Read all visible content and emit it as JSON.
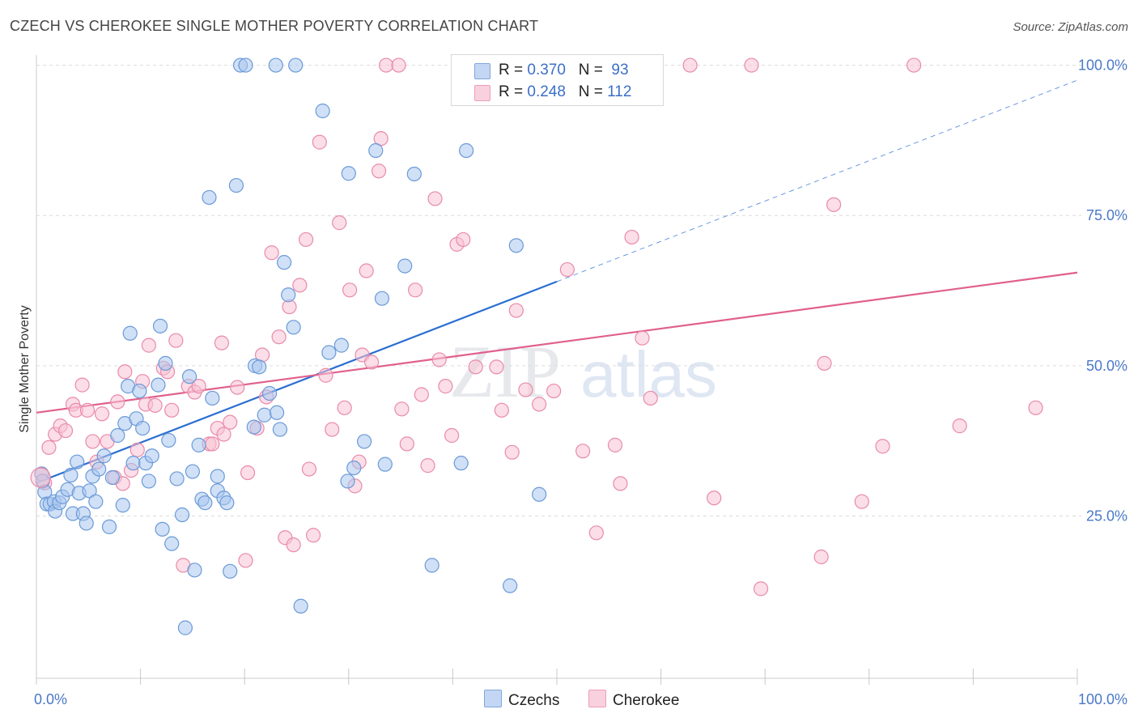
{
  "title": "CZECH VS CHEROKEE SINGLE MOTHER POVERTY CORRELATION CHART",
  "source": "Source: ZipAtlas.com",
  "watermark": {
    "zip": "ZIP",
    "atlas": "atlas"
  },
  "legend": {
    "rows": [
      {
        "r_label": "R = ",
        "r_value": "0.370",
        "n_label": "N = ",
        "n_value": "93"
      },
      {
        "r_label": "R = ",
        "r_value": "0.248",
        "n_label": "N = ",
        "n_value": "112"
      }
    ]
  },
  "colors": {
    "czech_fill": "#a9c7ef",
    "czech_stroke": "#6a9ad8",
    "czech_line": "#2b6fd1",
    "cherokee_fill": "#f7c3d3",
    "cherokee_stroke": "#e98aaa",
    "cherokee_line": "#e0608c",
    "tick_color": "#4a78c8"
  },
  "chart_data": {
    "type": "scatter",
    "title": "CZECH VS CHEROKEE SINGLE MOTHER POVERTY CORRELATION CHART",
    "xlabel": "",
    "ylabel": "Single Mother Poverty",
    "xlim": [
      0,
      100
    ],
    "ylim": [
      -2,
      102.5
    ],
    "x_tick_labels": [
      "0.0%",
      "100.0%"
    ],
    "y_ticks": [
      25,
      50,
      75,
      100
    ],
    "y_tick_labels": [
      "25.0%",
      "50.0%",
      "75.0%",
      "100.0%"
    ],
    "grid": true,
    "legend_position": "bottom-center",
    "series": [
      {
        "name": "Czechs",
        "r": 0.37,
        "n": 93,
        "trend": {
          "x": [
            0,
            50
          ],
          "y": [
            30.5,
            64.0
          ],
          "dashed_to": [
            100,
            97.5
          ]
        },
        "points": [
          [
            0.5,
            32
          ],
          [
            0.6,
            30.8
          ],
          [
            0.8,
            29
          ],
          [
            1,
            27
          ],
          [
            1.3,
            27
          ],
          [
            1.7,
            27.4
          ],
          [
            1.8,
            25.8
          ],
          [
            2.2,
            27.2
          ],
          [
            2.5,
            28.2
          ],
          [
            3,
            29.4
          ],
          [
            3.3,
            31.8
          ],
          [
            3.5,
            25.4
          ],
          [
            3.9,
            34
          ],
          [
            4.1,
            28.8
          ],
          [
            4.5,
            25.4
          ],
          [
            4.8,
            23.8
          ],
          [
            5.1,
            29.2
          ],
          [
            5.4,
            31.6
          ],
          [
            5.7,
            27.4
          ],
          [
            6,
            32.8
          ],
          [
            6.5,
            35
          ],
          [
            7,
            23.2
          ],
          [
            7.3,
            31.4
          ],
          [
            7.8,
            38.4
          ],
          [
            8.3,
            26.8
          ],
          [
            8.5,
            40.4
          ],
          [
            8.8,
            46.6
          ],
          [
            9,
            55.4
          ],
          [
            9.3,
            33.8
          ],
          [
            9.6,
            41.2
          ],
          [
            9.9,
            45.8
          ],
          [
            10.2,
            39.6
          ],
          [
            10.5,
            33.8
          ],
          [
            10.8,
            30.8
          ],
          [
            11.1,
            35
          ],
          [
            11.7,
            46.8
          ],
          [
            11.9,
            56.6
          ],
          [
            12.1,
            22.8
          ],
          [
            12.4,
            50.4
          ],
          [
            12.7,
            37.6
          ],
          [
            13,
            20.4
          ],
          [
            13.5,
            31.2
          ],
          [
            14,
            25.2
          ],
          [
            14.3,
            6.4
          ],
          [
            14.7,
            48.2
          ],
          [
            15,
            32.4
          ],
          [
            15.2,
            16
          ],
          [
            15.6,
            36.8
          ],
          [
            15.9,
            27.8
          ],
          [
            16.2,
            27.2
          ],
          [
            16.6,
            78
          ],
          [
            16.9,
            44.6
          ],
          [
            17.4,
            29.2
          ],
          [
            17.4,
            31.6
          ],
          [
            18,
            28
          ],
          [
            18.3,
            27.2
          ],
          [
            18.6,
            15.8
          ],
          [
            19.2,
            80
          ],
          [
            19.6,
            100
          ],
          [
            20.1,
            100
          ],
          [
            20.9,
            39.8
          ],
          [
            21,
            50
          ],
          [
            21.4,
            49.8
          ],
          [
            21.9,
            41.8
          ],
          [
            22.4,
            45.4
          ],
          [
            23.1,
            42.2
          ],
          [
            23.4,
            39.4
          ],
          [
            23.8,
            67.2
          ],
          [
            24.2,
            61.8
          ],
          [
            24.7,
            56.4
          ],
          [
            23,
            100
          ],
          [
            24.9,
            100
          ],
          [
            25.4,
            10
          ],
          [
            27.5,
            92.4
          ],
          [
            28.1,
            52.2
          ],
          [
            29.3,
            53.4
          ],
          [
            29.9,
            30.8
          ],
          [
            30.5,
            33
          ],
          [
            31.5,
            37.4
          ],
          [
            32.6,
            85.8
          ],
          [
            33.2,
            61.2
          ],
          [
            33.5,
            33.6
          ],
          [
            35.4,
            66.6
          ],
          [
            36.3,
            81.9
          ],
          [
            38,
            16.8
          ],
          [
            40.8,
            33.8
          ],
          [
            41.3,
            85.8
          ],
          [
            45.5,
            13.4
          ],
          [
            46.1,
            70
          ],
          [
            48.3,
            28.6
          ],
          [
            30,
            82
          ]
        ]
      },
      {
        "name": "Cherokee",
        "r": 0.248,
        "n": 112,
        "trend": {
          "x": [
            0,
            100
          ],
          "y": [
            42.2,
            65.5
          ]
        },
        "points": [
          [
            0.5,
            32
          ],
          [
            0.8,
            30.5
          ],
          [
            1.2,
            36.4
          ],
          [
            1.8,
            38.6
          ],
          [
            2.3,
            40
          ],
          [
            2.8,
            39.2
          ],
          [
            3.5,
            43.6
          ],
          [
            3.8,
            42.6
          ],
          [
            4.4,
            46.8
          ],
          [
            4.9,
            42.6
          ],
          [
            5.4,
            37.4
          ],
          [
            5.8,
            34
          ],
          [
            6.3,
            42
          ],
          [
            6.8,
            37.4
          ],
          [
            7.5,
            31.4
          ],
          [
            7.8,
            44
          ],
          [
            8.3,
            30.4
          ],
          [
            8.5,
            49
          ],
          [
            9.1,
            32.6
          ],
          [
            9.7,
            36
          ],
          [
            10.2,
            47.4
          ],
          [
            10.5,
            43.6
          ],
          [
            10.8,
            53.4
          ],
          [
            11.4,
            43.4
          ],
          [
            12.2,
            49.6
          ],
          [
            12.6,
            49
          ],
          [
            13,
            42.6
          ],
          [
            13.4,
            54.2
          ],
          [
            14.1,
            16.8
          ],
          [
            14.6,
            46.6
          ],
          [
            15.2,
            45.6
          ],
          [
            15.6,
            46.6
          ],
          [
            16.6,
            37
          ],
          [
            16.9,
            37
          ],
          [
            17.4,
            39.6
          ],
          [
            17.8,
            53.8
          ],
          [
            18,
            38.6
          ],
          [
            18.6,
            40.6
          ],
          [
            19.3,
            46.4
          ],
          [
            20.1,
            17.6
          ],
          [
            20.3,
            32.2
          ],
          [
            21.2,
            39.6
          ],
          [
            21.7,
            51.8
          ],
          [
            22.1,
            44.8
          ],
          [
            22.6,
            68.8
          ],
          [
            23.3,
            54.8
          ],
          [
            23.9,
            21.4
          ],
          [
            24.3,
            59.8
          ],
          [
            24.7,
            20.2
          ],
          [
            25.3,
            63.4
          ],
          [
            25.9,
            71
          ],
          [
            26.2,
            32.8
          ],
          [
            26.6,
            21.8
          ],
          [
            27.2,
            87.2
          ],
          [
            27.8,
            48.4
          ],
          [
            28.4,
            39.4
          ],
          [
            29.1,
            73.8
          ],
          [
            29.6,
            43
          ],
          [
            30.1,
            62.6
          ],
          [
            30.6,
            30
          ],
          [
            31,
            34
          ],
          [
            31.3,
            51.8
          ],
          [
            31.7,
            65.8
          ],
          [
            32.2,
            50.6
          ],
          [
            32.9,
            82.4
          ],
          [
            33.1,
            87.8
          ],
          [
            33.6,
            100
          ],
          [
            34.8,
            100
          ],
          [
            35.1,
            42.8
          ],
          [
            35.6,
            37
          ],
          [
            36.4,
            62.6
          ],
          [
            37,
            45.2
          ],
          [
            37.6,
            33.4
          ],
          [
            38.3,
            77.8
          ],
          [
            38.7,
            51
          ],
          [
            39.3,
            46.6
          ],
          [
            39.9,
            38.4
          ],
          [
            40.4,
            70.2
          ],
          [
            41,
            71
          ],
          [
            42.2,
            49.8
          ],
          [
            42.4,
            100
          ],
          [
            42.6,
            100
          ],
          [
            44.2,
            49.8
          ],
          [
            44.7,
            42.6
          ],
          [
            45.7,
            35.6
          ],
          [
            46.1,
            59.2
          ],
          [
            47,
            46
          ],
          [
            48.3,
            43.6
          ],
          [
            49.7,
            45.8
          ],
          [
            51,
            66
          ],
          [
            52.5,
            35.8
          ],
          [
            53.8,
            22.2
          ],
          [
            55.6,
            36.8
          ],
          [
            56.1,
            30.4
          ],
          [
            57.2,
            71.4
          ],
          [
            58.2,
            54.6
          ],
          [
            59,
            44.6
          ],
          [
            62.8,
            100
          ],
          [
            65.1,
            28
          ],
          [
            68.7,
            100
          ],
          [
            69.6,
            12.9
          ],
          [
            75.4,
            18.2
          ],
          [
            75.7,
            50.4
          ],
          [
            76.6,
            76.8
          ],
          [
            79.3,
            27.4
          ],
          [
            81.3,
            36.6
          ],
          [
            84.3,
            100
          ],
          [
            88.7,
            40
          ],
          [
            96,
            43
          ]
        ]
      }
    ]
  }
}
